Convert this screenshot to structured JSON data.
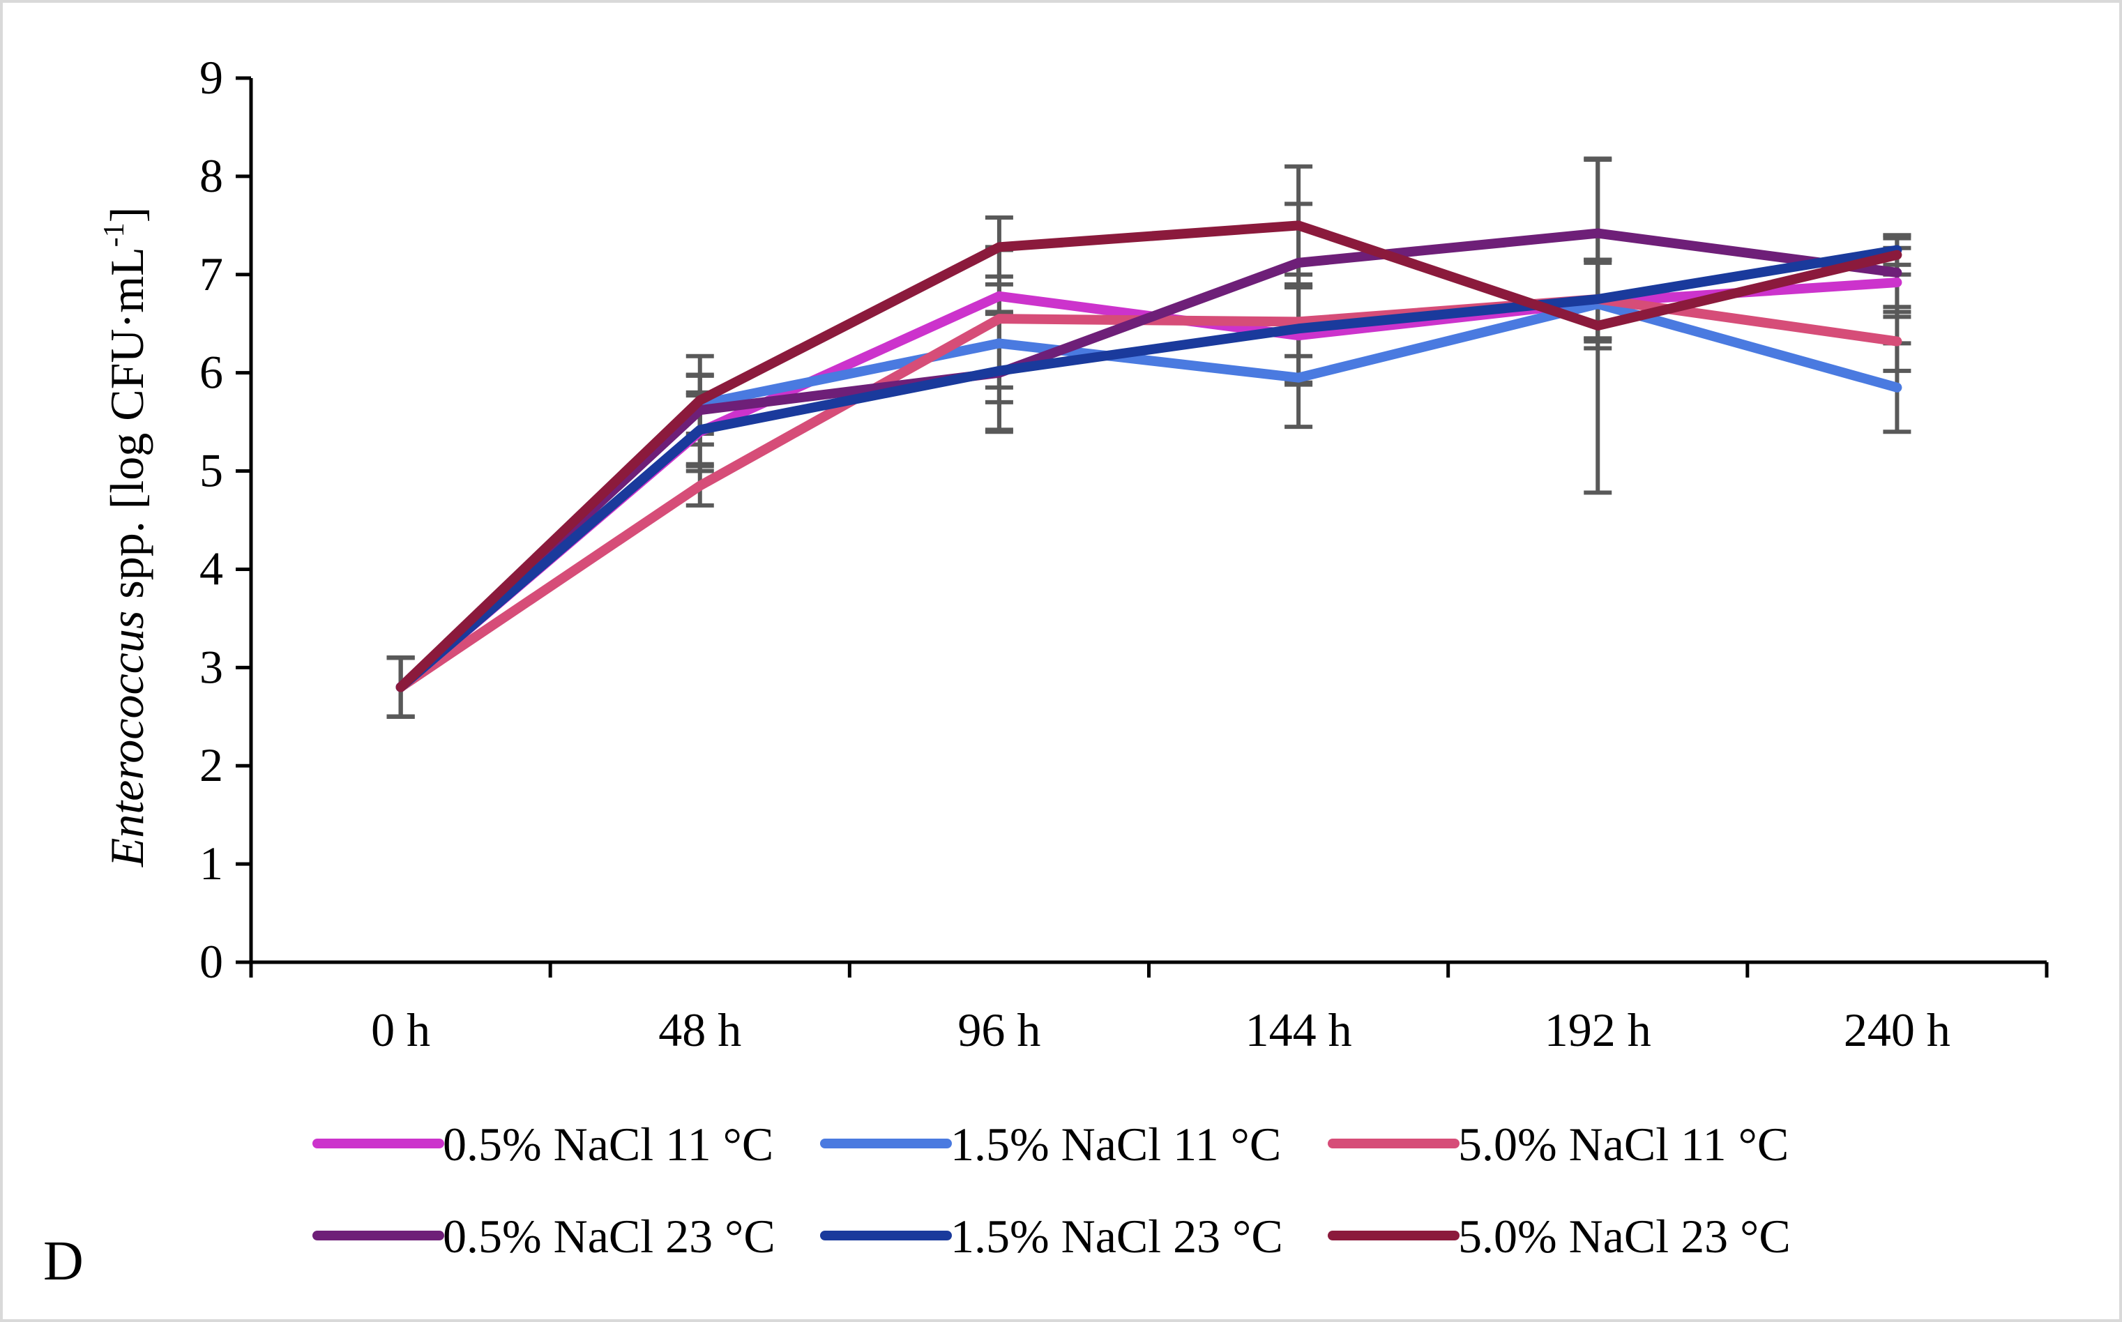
{
  "chart_data": {
    "type": "line",
    "panel_label": "D",
    "ylabel_italic": "Enterococcus",
    "ylabel_rest": " spp.  [log CFU·mL",
    "ylabel_sup": "-1",
    "ylabel_close": "]",
    "xlabel": "",
    "ylim": [
      0,
      9
    ],
    "yticks": [
      "0",
      "1",
      "2",
      "3",
      "4",
      "5",
      "6",
      "7",
      "8",
      "9"
    ],
    "categories": [
      "0 h",
      "48 h",
      "96 h",
      "144 h",
      "192 h",
      "240 h"
    ],
    "legend_position": "bottom",
    "series": [
      {
        "name": "0.5% NaCl 11 °C",
        "color": "#cc33cc",
        "values": [
          2.8,
          5.4,
          6.78,
          6.38,
          6.72,
          6.92
        ],
        "err": [
          0.3,
          0.4,
          0.5,
          0.5,
          0.4,
          0.35
        ]
      },
      {
        "name": "1.5% NaCl 11 °C",
        "color": "#4a7ae0",
        "values": [
          2.8,
          5.68,
          6.3,
          5.95,
          6.7,
          5.85
        ],
        "err": [
          0.3,
          0.3,
          0.6,
          0.5,
          0.45,
          0.45
        ]
      },
      {
        "name": "5.0% NaCl 11 °C",
        "color": "#d64d78",
        "values": [
          2.8,
          4.85,
          6.55,
          6.52,
          6.75,
          6.32
        ],
        "err": [
          0.3,
          0.2,
          0.7,
          0.35,
          0.4,
          0.3
        ]
      },
      {
        "name": "0.5% NaCl 23 °C",
        "color": "#6e1f78",
        "values": [
          2.8,
          5.62,
          6.0,
          7.12,
          7.42,
          7.02
        ],
        "err": [
          0.3,
          0.35,
          0.6,
          0.6,
          0.75,
          0.35
        ]
      },
      {
        "name": "1.5% NaCl 23 °C",
        "color": "#1a3a9c",
        "values": [
          2.8,
          5.42,
          6.02,
          6.45,
          6.75,
          7.25
        ],
        "err": [
          0.3,
          0.35,
          0.6,
          0.55,
          0.4,
          0.15
        ]
      },
      {
        "name": "5.0% NaCl 23 °C",
        "color": "#8b1a3c",
        "values": [
          2.8,
          5.72,
          7.28,
          7.5,
          6.48,
          7.2
        ],
        "err": [
          0.3,
          0.45,
          0.3,
          0.6,
          1.7,
          0.2
        ]
      }
    ]
  }
}
